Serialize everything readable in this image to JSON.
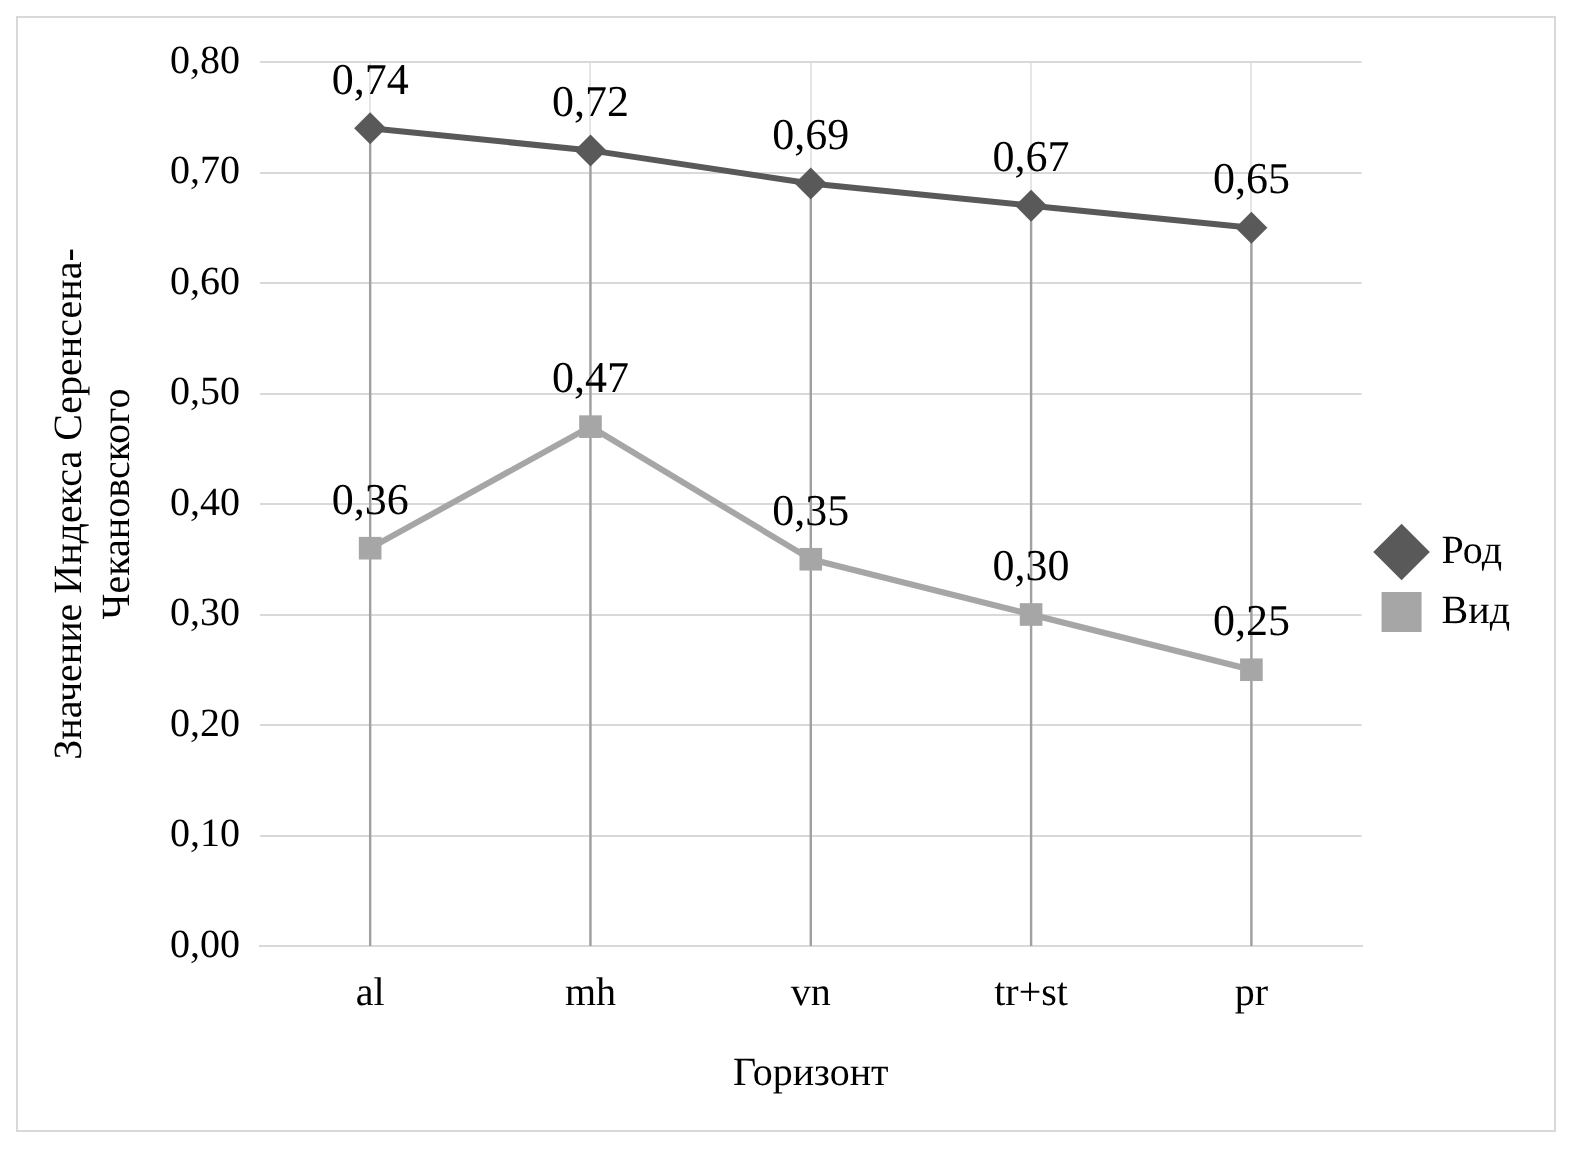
{
  "chart_data": {
    "type": "line",
    "categories": [
      "al",
      "mh",
      "vn",
      "tr+st",
      "pr"
    ],
    "xlabel": "Горизонт",
    "ylabel": "Значение Индекса Серенсена-Чекановского",
    "series": [
      {
        "name": "Род",
        "color": "#595959",
        "marker": "diamond",
        "values": [
          0.74,
          0.72,
          0.69,
          0.67,
          0.65
        ],
        "value_labels": [
          "0,74",
          "0,72",
          "0,69",
          "0,67",
          "0,65"
        ]
      },
      {
        "name": "Вид",
        "color": "#a6a6a6",
        "marker": "square",
        "values": [
          0.36,
          0.47,
          0.35,
          0.3,
          0.25
        ],
        "value_labels": [
          "0,36",
          "0,47",
          "0,35",
          "0,30",
          "0,25"
        ]
      }
    ],
    "ylim": [
      0,
      0.8
    ],
    "yticks": [
      {
        "value": 0,
        "label": "0,00"
      },
      {
        "value": 0.1,
        "label": "0,10"
      },
      {
        "value": 0.2,
        "label": "0,20"
      },
      {
        "value": 0.3,
        "label": "0,30"
      },
      {
        "value": 0.4,
        "label": "0,40"
      },
      {
        "value": 0.5,
        "label": "0,50"
      },
      {
        "value": 0.6,
        "label": "0,60"
      },
      {
        "value": 0.7,
        "label": "0,70"
      },
      {
        "value": 0.8,
        "label": "0,80"
      }
    ],
    "grid": true,
    "legend": "right"
  }
}
